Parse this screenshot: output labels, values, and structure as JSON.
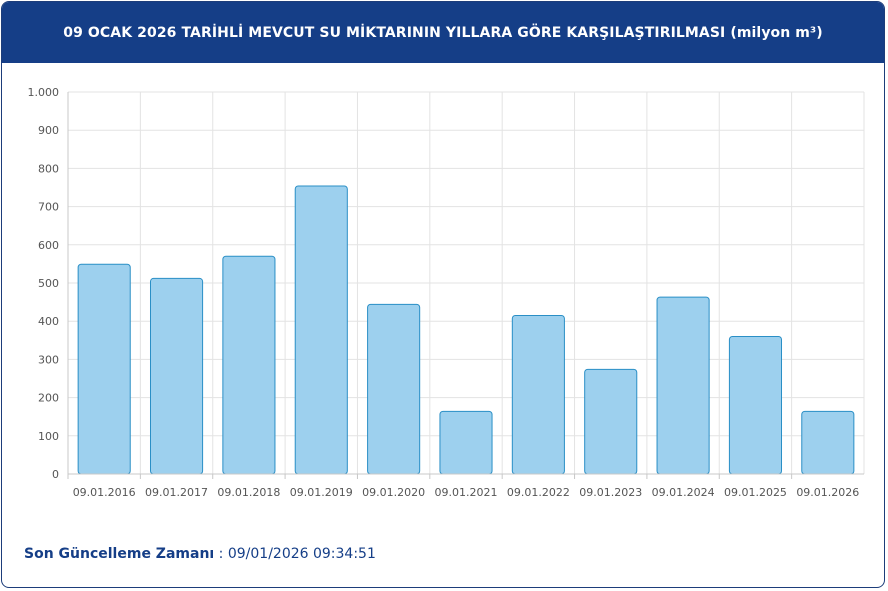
{
  "header": {
    "title": "09 OCAK 2026 TARİHLİ MEVCUT SU MİKTARININ YILLARA GÖRE KARŞILAŞTIRILMASI (milyon m³)"
  },
  "chart_data": {
    "type": "bar",
    "categories": [
      "09.01.2016",
      "09.01.2017",
      "09.01.2018",
      "09.01.2019",
      "09.01.2020",
      "09.01.2021",
      "09.01.2022",
      "09.01.2023",
      "09.01.2024",
      "09.01.2025",
      "09.01.2026"
    ],
    "values": [
      549,
      512,
      570,
      754,
      444,
      164,
      415,
      274,
      463,
      360,
      164
    ],
    "ylim": [
      0,
      1000
    ],
    "yticks": [
      0,
      100,
      200,
      300,
      400,
      500,
      600,
      700,
      800,
      900,
      1000
    ],
    "ytick_labels": [
      "0",
      "100",
      "200",
      "300",
      "400",
      "500",
      "600",
      "700",
      "800",
      "900",
      "1.000"
    ],
    "grid": true,
    "bar_color": "#9dd0ee",
    "bar_border": "#2a8fc6"
  },
  "footer": {
    "label": "Son Güncelleme Zamanı",
    "separator": " : ",
    "value": "09/01/2026 09:34:51"
  }
}
